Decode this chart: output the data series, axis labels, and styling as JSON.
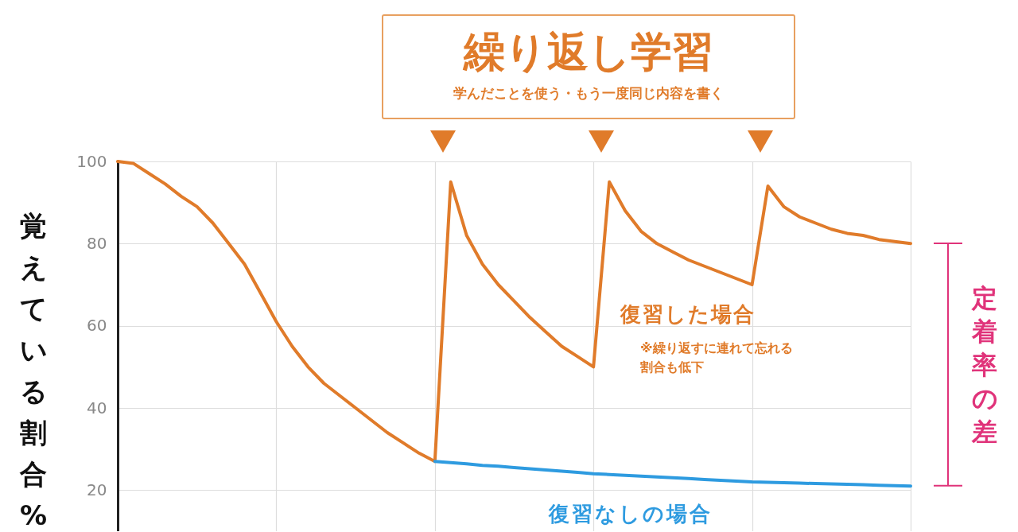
{
  "chart_data": {
    "type": "line",
    "title": "繰り返し学習",
    "subtitle": "学んだことを使う・もう一度同じ内容を書く",
    "ylabel": "覚えている割合%",
    "categories": [
      null,
      null,
      null,
      null,
      null,
      null,
      null,
      null,
      null,
      null,
      null,
      null,
      null,
      null,
      null,
      null,
      null,
      null,
      null,
      null,
      null,
      null,
      null,
      null,
      null,
      null,
      null,
      null,
      null,
      null,
      null,
      null,
      null,
      null,
      null,
      null,
      null,
      null,
      null,
      null,
      null,
      null,
      null,
      null,
      null,
      null,
      null,
      null,
      null,
      null,
      null
    ],
    "ylim": [
      10,
      100
    ],
    "yticks": [
      20,
      40,
      60,
      80,
      100
    ],
    "grid": true,
    "tick_labels": "y",
    "series": [
      {
        "name": "復習した場合",
        "color": "#e07b2a",
        "values": [
          100,
          99.5,
          97,
          94.5,
          91.5,
          89,
          85,
          80,
          75,
          68,
          61,
          55,
          50,
          46,
          43,
          40,
          37,
          34,
          31.5,
          29,
          27,
          95,
          82,
          75,
          70,
          66,
          62,
          58.5,
          55,
          52.5,
          50,
          95,
          88,
          83,
          80,
          78,
          76,
          74.5,
          73,
          71.5,
          70,
          94,
          89,
          86.5,
          85,
          83.5,
          82.5,
          82,
          81,
          80.5,
          80
        ]
      },
      {
        "name": "復習なしの場合",
        "color": "#2e9be0",
        "values": [
          null,
          null,
          null,
          null,
          null,
          null,
          null,
          null,
          null,
          null,
          null,
          null,
          null,
          null,
          null,
          null,
          null,
          null,
          null,
          null,
          27,
          26.7,
          26.4,
          26,
          25.8,
          25.5,
          25.2,
          24.9,
          24.6,
          24.3,
          24,
          23.8,
          23.6,
          23.4,
          23.2,
          23,
          22.8,
          22.6,
          22.4,
          22.2,
          22,
          21.9,
          21.8,
          21.7,
          21.6,
          21.5,
          21.4,
          21.3,
          21.2,
          21.1,
          21
        ]
      }
    ],
    "annotations": [
      "※繰り返すに連れて忘れる割合も低下",
      "定着率の差"
    ]
  }
}
